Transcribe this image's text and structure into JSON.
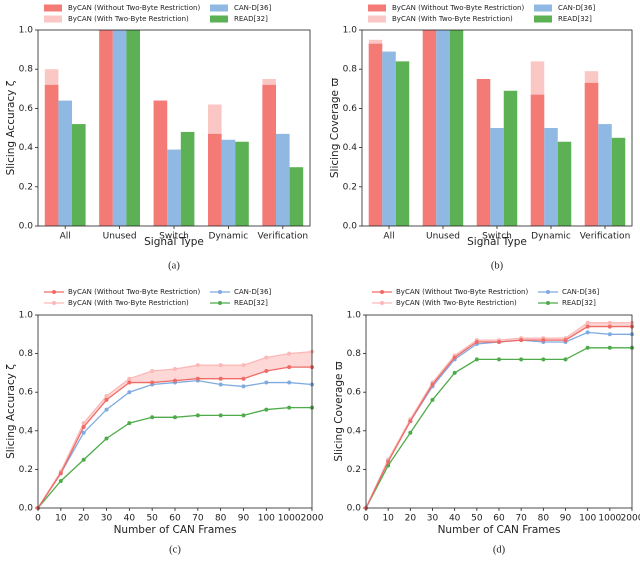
{
  "chart_data": [
    {
      "type": "bar",
      "caption": "(a)",
      "xlabel": "Signal Type",
      "ylabel": "Slicing Accuracy ζ",
      "categories": [
        "All",
        "Unused",
        "Switch",
        "Dynamic",
        "Verification"
      ],
      "ylim": [
        0,
        1
      ],
      "yticks": [
        {
          "value": 0,
          "label": "0.0"
        },
        0.2,
        0.4,
        0.6,
        0.8,
        {
          "value": 1,
          "label": "1.0"
        }
      ],
      "series": [
        {
          "name": "ByCAN (Without Two-Byte Restriction)",
          "color": "#f47a76",
          "values": [
            0.72,
            1.0,
            0.64,
            0.47,
            0.72
          ]
        },
        {
          "name": "ByCAN (With Two-Byte Restriction)",
          "color": "#fbc7c5",
          "values": [
            0.8,
            1.0,
            0.64,
            0.62,
            0.75
          ]
        },
        {
          "name": "CAN-D[36]",
          "color": "#8fb9e2",
          "values": [
            0.64,
            1.0,
            0.39,
            0.44,
            0.47
          ]
        },
        {
          "name": "READ[32]",
          "color": "#5bb153",
          "values": [
            0.52,
            1.0,
            0.48,
            0.43,
            0.3
          ]
        }
      ]
    },
    {
      "type": "bar",
      "caption": "(b)",
      "xlabel": "Signal Type",
      "ylabel": "Slicing Coverage ϖ",
      "categories": [
        "All",
        "Unused",
        "Switch",
        "Dynamic",
        "Verification"
      ],
      "ylim": [
        0,
        1
      ],
      "yticks": [
        {
          "value": 0,
          "label": "0.0"
        },
        0.2,
        0.4,
        0.6,
        0.8,
        {
          "value": 1,
          "label": "1.0"
        }
      ],
      "series": [
        {
          "name": "ByCAN (Without Two-Byte Restriction)",
          "color": "#f47a76",
          "values": [
            0.93,
            1.0,
            0.75,
            0.67,
            0.73
          ]
        },
        {
          "name": "ByCAN (With Two-Byte Restriction)",
          "color": "#fbc7c5",
          "values": [
            0.95,
            1.0,
            0.75,
            0.84,
            0.79
          ]
        },
        {
          "name": "CAN-D[36]",
          "color": "#8fb9e2",
          "values": [
            0.89,
            1.0,
            0.5,
            0.5,
            0.52
          ]
        },
        {
          "name": "READ[32]",
          "color": "#5bb153",
          "values": [
            0.84,
            1.0,
            0.69,
            0.43,
            0.45
          ]
        }
      ]
    },
    {
      "type": "line",
      "caption": "(c)",
      "xlabel": "Number of CAN Frames",
      "ylabel": "Slicing Accuracy ζ",
      "categories": [
        0,
        10,
        20,
        30,
        40,
        50,
        60,
        70,
        80,
        90,
        100,
        1000,
        2000
      ],
      "ylim": [
        0,
        1
      ],
      "yticks": [
        {
          "value": 0,
          "label": "0.0"
        },
        0.2,
        0.4,
        0.6,
        0.8,
        {
          "value": 1,
          "label": "1.0"
        }
      ],
      "series": [
        {
          "name": "ByCAN (Without Two-Byte Restriction)",
          "color": "#f06a66",
          "values": [
            0,
            0.18,
            0.42,
            0.56,
            0.65,
            0.65,
            0.66,
            0.67,
            0.67,
            0.67,
            0.71,
            0.73,
            0.73
          ]
        },
        {
          "name": "ByCAN (With Two-Byte Restriction)",
          "color": "#fbb8b6",
          "values": [
            0,
            0.19,
            0.44,
            0.58,
            0.67,
            0.71,
            0.72,
            0.74,
            0.74,
            0.74,
            0.78,
            0.8,
            0.81
          ]
        },
        {
          "name": "CAN-D[36]",
          "color": "#7fabe0",
          "values": [
            0,
            0.18,
            0.39,
            0.51,
            0.6,
            0.64,
            0.65,
            0.66,
            0.64,
            0.63,
            0.65,
            0.65,
            0.64
          ]
        },
        {
          "name": "READ[32]",
          "color": "#4fab4a",
          "values": [
            0,
            0.14,
            0.25,
            0.36,
            0.44,
            0.47,
            0.47,
            0.48,
            0.48,
            0.48,
            0.51,
            0.52,
            0.52
          ]
        }
      ]
    },
    {
      "type": "line",
      "caption": "(d)",
      "xlabel": "Number of CAN Frames",
      "ylabel": "Slicing Coverage ϖ",
      "categories": [
        0,
        10,
        20,
        30,
        40,
        50,
        60,
        70,
        80,
        90,
        100,
        1000,
        2000
      ],
      "ylim": [
        0,
        1
      ],
      "yticks": [
        {
          "value": 0,
          "label": "0.0"
        },
        0.2,
        0.4,
        0.6,
        0.8,
        {
          "value": 1,
          "label": "1.0"
        }
      ],
      "series": [
        {
          "name": "ByCAN (Without Two-Byte Restriction)",
          "color": "#f06a66",
          "values": [
            0,
            0.24,
            0.45,
            0.64,
            0.78,
            0.86,
            0.86,
            0.87,
            0.87,
            0.87,
            0.94,
            0.94,
            0.94
          ]
        },
        {
          "name": "ByCAN (With Two-Byte Restriction)",
          "color": "#fbb8b6",
          "values": [
            0,
            0.25,
            0.46,
            0.65,
            0.79,
            0.87,
            0.87,
            0.88,
            0.88,
            0.88,
            0.96,
            0.96,
            0.96
          ]
        },
        {
          "name": "CAN-D[36]",
          "color": "#7fabe0",
          "values": [
            0,
            0.25,
            0.45,
            0.63,
            0.77,
            0.85,
            0.86,
            0.87,
            0.86,
            0.86,
            0.91,
            0.9,
            0.9
          ]
        },
        {
          "name": "READ[32]",
          "color": "#4fab4a",
          "values": [
            0,
            0.22,
            0.39,
            0.56,
            0.7,
            0.77,
            0.77,
            0.77,
            0.77,
            0.77,
            0.83,
            0.83,
            0.83
          ]
        }
      ]
    }
  ]
}
